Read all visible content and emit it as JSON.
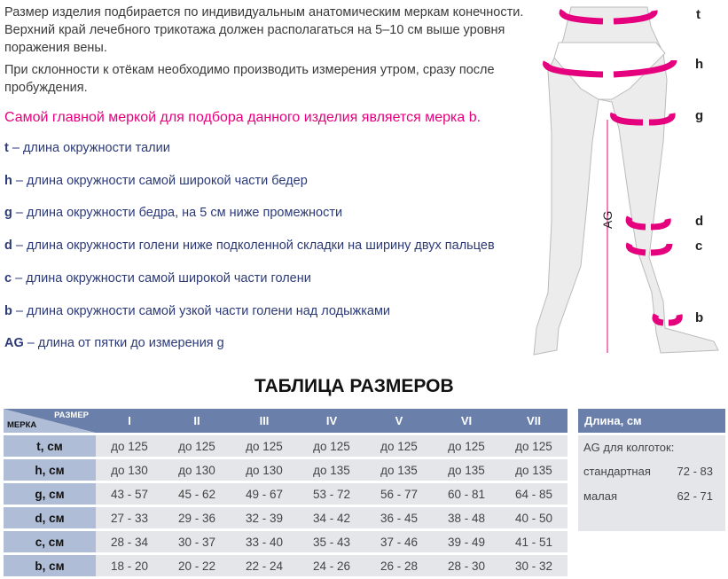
{
  "intro": [
    "Размер изделия подбирается по индивидуальным анатомическим меркам конечности. Верхний край лечебного трикотажа должен располагаться на 5–10 см выше уровня поражения вены.",
    "При склонности к отёкам необходимо производить измерения утром, сразу после пробуждения."
  ],
  "highlight": "Самой главной меркой для подбора данного изделия является мерка b.",
  "legend": [
    {
      "k": "t",
      "t": " – длина окружности талии"
    },
    {
      "k": "h",
      "t": " – длина окружности самой широкой части бедер"
    },
    {
      "k": "g",
      "t": " – длина окружности бедра, на 5 см ниже промежности"
    },
    {
      "k": "d",
      "t": " – длина окружности голени ниже подколенной складки на ширину двух пальцев"
    },
    {
      "k": "c",
      "t": " – длина окружности самой широкой части голени"
    },
    {
      "k": "b",
      "t": " – длина окружности самой узкой части голени над лодыжками"
    },
    {
      "k": "AG",
      "t": " – длина от пятки до измерения g"
    }
  ],
  "diagram": {
    "labels": [
      "t",
      "h",
      "g",
      "d",
      "c",
      "b"
    ],
    "ag": "AG",
    "accent": "#e5007d"
  },
  "table_title": "ТАБЛИЦА РАЗМЕРОВ",
  "table": {
    "corner_size": "РАЗМЕР",
    "corner_measure": "МЕРКА",
    "sizes": [
      "I",
      "II",
      "III",
      "IV",
      "V",
      "VI",
      "VII"
    ],
    "rows": [
      {
        "label": "t, см",
        "values": [
          "до 125",
          "до 125",
          "до 125",
          "до 125",
          "до 125",
          "до 125",
          "до 125"
        ]
      },
      {
        "label": "h, см",
        "values": [
          "до 130",
          "до 130",
          "до 130",
          "до 135",
          "до 135",
          "до 135",
          "до 135"
        ]
      },
      {
        "label": "g, см",
        "values": [
          "43 - 57",
          "45 - 62",
          "49 - 67",
          "53 - 72",
          "56 - 77",
          "60 - 81",
          "64 - 85"
        ]
      },
      {
        "label": "d, см",
        "values": [
          "27 - 33",
          "29 - 36",
          "32 - 39",
          "34 - 42",
          "36 - 45",
          "38 - 48",
          "40 - 50"
        ]
      },
      {
        "label": "c, см",
        "values": [
          "28 - 34",
          "30 - 37",
          "33 - 40",
          "35 - 43",
          "37 - 46",
          "39 - 49",
          "41 - 51"
        ]
      },
      {
        "label": "b, см",
        "values": [
          "18 - 20",
          "20 - 22",
          "22 - 24",
          "24 - 26",
          "26 - 28",
          "28 - 30",
          "30 - 32"
        ]
      }
    ]
  },
  "length": {
    "header": "Длина, см",
    "sub": "AG для колготок:",
    "rows": [
      {
        "name": "стандартная",
        "value": "72 - 83"
      },
      {
        "name": "малая",
        "value": "62 - 71"
      }
    ]
  },
  "colors": {
    "header": "#6a80aa",
    "label_col": "#b0bdd6",
    "cell": "#e4e6ea",
    "text": "#2c3a78"
  }
}
